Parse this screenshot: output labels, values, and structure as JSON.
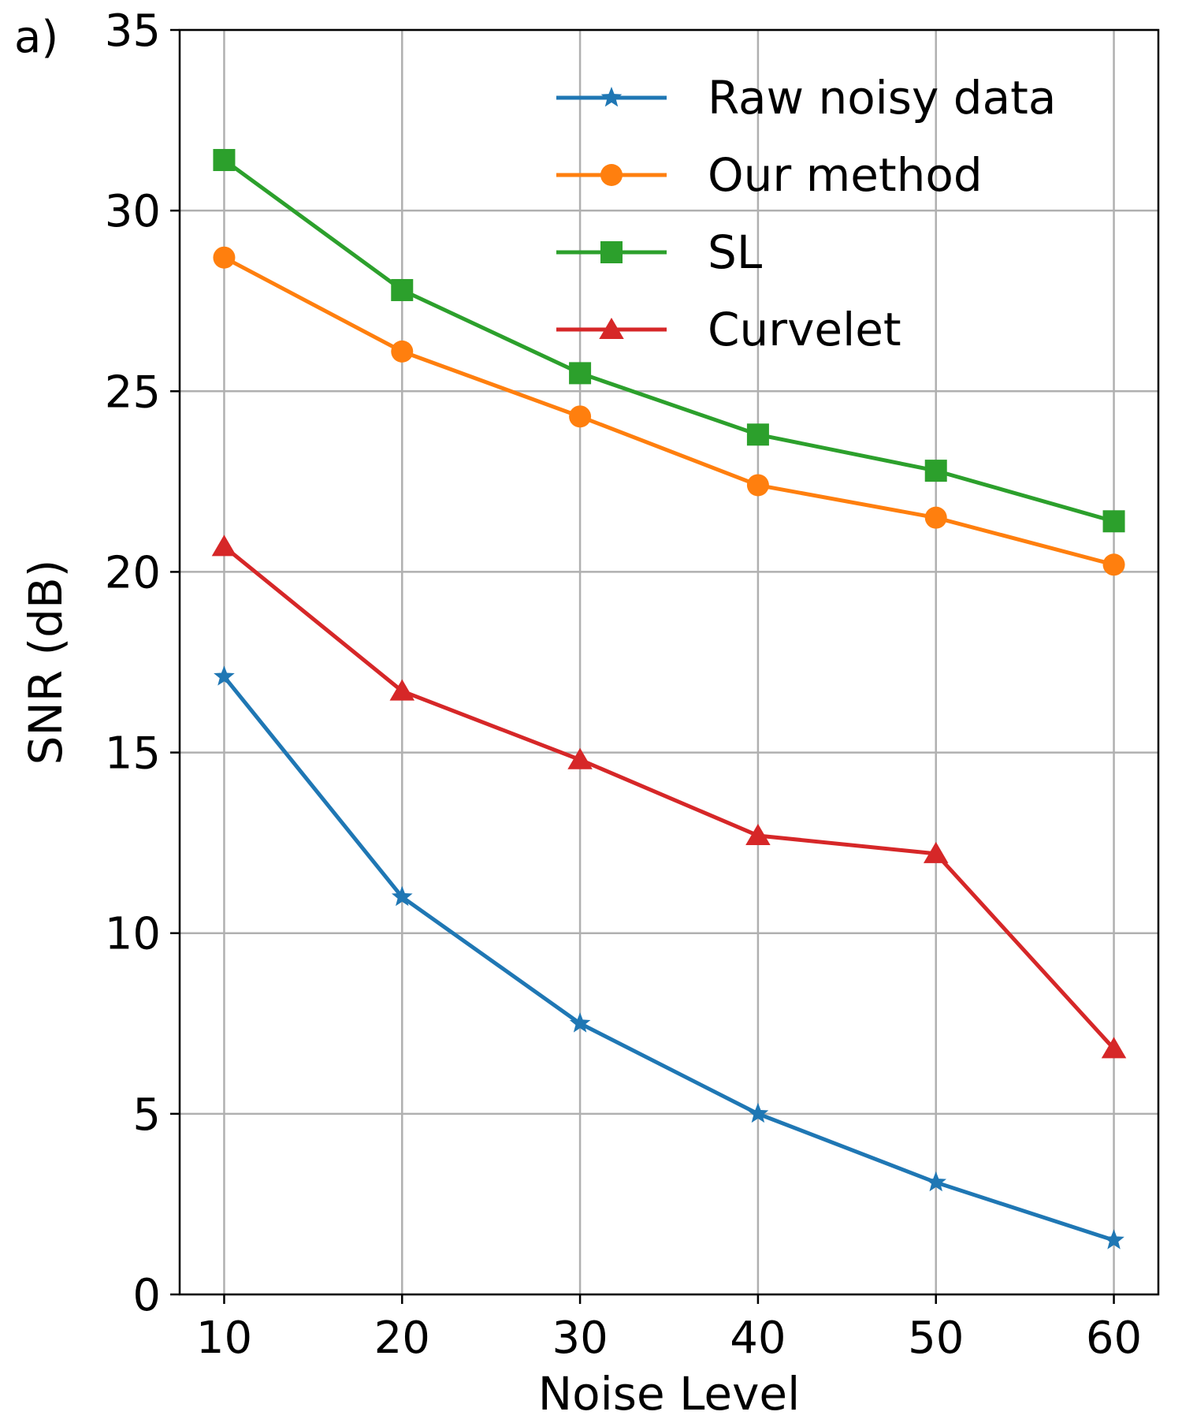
{
  "panel_label": "a)",
  "chart_data": {
    "type": "line",
    "title": "",
    "xlabel": "Noise Level",
    "ylabel": "SNR (dB)",
    "x": [
      10,
      20,
      30,
      40,
      50,
      60
    ],
    "x_ticks": [
      10,
      20,
      30,
      40,
      50,
      60
    ],
    "y_ticks": [
      0,
      5,
      10,
      15,
      20,
      25,
      30,
      35
    ],
    "xlim": [
      7.5,
      62.5
    ],
    "ylim": [
      0,
      35
    ],
    "grid": true,
    "legend_position": "top-right",
    "series": [
      {
        "name": "Raw noisy data",
        "color": "#1f77b4",
        "marker": "star",
        "values": [
          17.1,
          11.0,
          7.5,
          5.0,
          3.1,
          1.5
        ]
      },
      {
        "name": "Our method",
        "color": "#ff7f0e",
        "marker": "circle",
        "values": [
          28.7,
          26.1,
          24.3,
          22.4,
          21.5,
          20.2
        ]
      },
      {
        "name": "SL",
        "color": "#2ca02c",
        "marker": "square",
        "values": [
          31.4,
          27.8,
          25.5,
          23.8,
          22.8,
          21.4
        ]
      },
      {
        "name": "Curvelet",
        "color": "#d62728",
        "marker": "triangle",
        "values": [
          20.7,
          16.7,
          14.8,
          12.7,
          12.2,
          6.8
        ]
      }
    ]
  }
}
